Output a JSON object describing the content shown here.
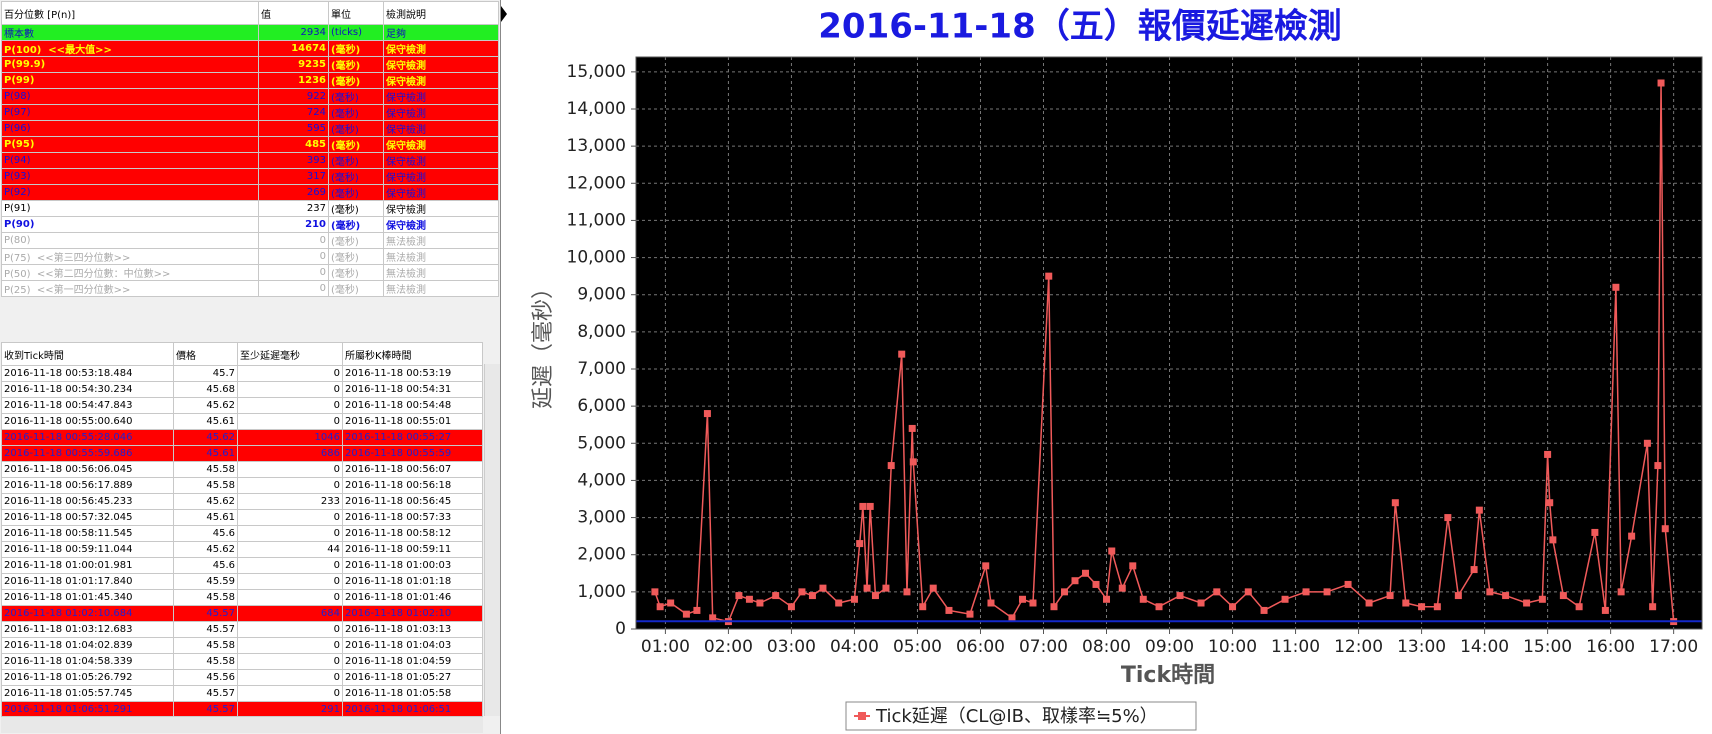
{
  "top_table": {
    "columns": [
      "百分位數 [P(n)]",
      "值",
      "單位",
      "檢測說明"
    ],
    "rows": [
      [
        "標本數",
        2934,
        "(ticks)",
        "足夠"
      ],
      [
        "P(100)  <<最大值>>",
        14674,
        "(毫秒)",
        "保守檢測"
      ],
      [
        "P(99.9)",
        9235,
        "(毫秒)",
        "保守檢測"
      ],
      [
        "P(99)",
        1236,
        "(毫秒)",
        "保守檢測"
      ],
      [
        "P(98)",
        922,
        "(毫秒)",
        "保守檢測"
      ],
      [
        "P(97)",
        724,
        "(毫秒)",
        "保守檢測"
      ],
      [
        "P(96)",
        595,
        "(毫秒)",
        "保守檢測"
      ],
      [
        "P(95)",
        485,
        "(毫秒)",
        "保守檢測"
      ],
      [
        "P(94)",
        393,
        "(毫秒)",
        "保守檢測"
      ],
      [
        "P(93)",
        317,
        "(毫秒)",
        "保守檢測"
      ],
      [
        "P(92)",
        269,
        "(毫秒)",
        "保守檢測"
      ],
      [
        "P(91)",
        237,
        "(毫秒)",
        "保守檢測"
      ],
      [
        "P(90)",
        210,
        "(毫秒)",
        "保守檢測"
      ],
      [
        "P(80)",
        0,
        "(毫秒)",
        "無法檢測"
      ],
      [
        "P(75)  <<第三四分位數>>",
        0,
        "(毫秒)",
        "無法檢測"
      ],
      [
        "P(50)  <<第二四分位數：中位數>>",
        0,
        "(毫秒)",
        "無法檢測"
      ],
      [
        "P(25)  <<第一四分位數>>",
        0,
        "(毫秒)",
        "無法檢測"
      ]
    ],
    "row_styles": [
      "ok",
      "hi",
      "hi",
      "hi",
      "warn",
      "warn",
      "warn",
      "hi",
      "warn",
      "warn",
      "warn",
      "plain",
      "mark",
      "na",
      "na",
      "na",
      "na"
    ]
  },
  "bottom_table": {
    "columns": [
      "收到Tick時間",
      "價格",
      "至少延遲毫秒",
      "所屬秒K棒時間"
    ],
    "rows": [
      [
        "2016-11-18 00:53:18.484",
        45.7,
        0,
        "2016-11-18 00:53:19"
      ],
      [
        "2016-11-18 00:54:30.234",
        45.68,
        0,
        "2016-11-18 00:54:31"
      ],
      [
        "2016-11-18 00:54:47.843",
        45.62,
        0,
        "2016-11-18 00:54:48"
      ],
      [
        "2016-11-18 00:55:00.640",
        45.61,
        0,
        "2016-11-18 00:55:01"
      ],
      [
        "2016-11-18 00:55:28.046",
        45.62,
        1046,
        "2016-11-18 00:55:27"
      ],
      [
        "2016-11-18 00:55:59.686",
        45.61,
        686,
        "2016-11-18 00:55:59"
      ],
      [
        "2016-11-18 00:56:06.045",
        45.58,
        0,
        "2016-11-18 00:56:07"
      ],
      [
        "2016-11-18 00:56:17.889",
        45.58,
        0,
        "2016-11-18 00:56:18"
      ],
      [
        "2016-11-18 00:56:45.233",
        45.62,
        233,
        "2016-11-18 00:56:45"
      ],
      [
        "2016-11-18 00:57:32.045",
        45.61,
        0,
        "2016-11-18 00:57:33"
      ],
      [
        "2016-11-18 00:58:11.545",
        45.6,
        0,
        "2016-11-18 00:58:12"
      ],
      [
        "2016-11-18 00:59:11.044",
        45.62,
        44,
        "2016-11-18 00:59:11"
      ],
      [
        "2016-11-18 01:00:01.981",
        45.6,
        0,
        "2016-11-18 01:00:03"
      ],
      [
        "2016-11-18 01:01:17.840",
        45.59,
        0,
        "2016-11-18 01:01:18"
      ],
      [
        "2016-11-18 01:01:45.340",
        45.58,
        0,
        "2016-11-18 01:01:46"
      ],
      [
        "2016-11-18 01:02:10.684",
        45.57,
        684,
        "2016-11-18 01:02:10"
      ],
      [
        "2016-11-18 01:03:12.683",
        45.57,
        0,
        "2016-11-18 01:03:13"
      ],
      [
        "2016-11-18 01:04:02.839",
        45.58,
        0,
        "2016-11-18 01:04:03"
      ],
      [
        "2016-11-18 01:04:58.339",
        45.58,
        0,
        "2016-11-18 01:04:59"
      ],
      [
        "2016-11-18 01:05:26.792",
        45.56,
        0,
        "2016-11-18 01:05:27"
      ],
      [
        "2016-11-18 01:05:57.745",
        45.57,
        0,
        "2016-11-18 01:05:58"
      ],
      [
        "2016-11-18 01:06:51.291",
        45.57,
        291,
        "2016-11-18 01:06:51"
      ]
    ],
    "highlight_rows": [
      4,
      5,
      15,
      21
    ]
  },
  "chart_data": {
    "type": "line",
    "title": "2016-11-18（五）報價延遲檢測",
    "x_label": "Tick時間",
    "y_label": "延遲（毫秒）",
    "x": [
      "00:50",
      "00:55",
      "01:05",
      "01:20",
      "01:30",
      "01:40",
      "01:45",
      "02:00",
      "02:10",
      "02:20",
      "02:30",
      "02:45",
      "03:00",
      "03:10",
      "03:20",
      "03:30",
      "03:45",
      "04:00",
      "04:05",
      "04:08",
      "04:12",
      "04:15",
      "04:20",
      "04:30",
      "04:35",
      "04:45",
      "04:50",
      "04:55",
      "04:56",
      "05:05",
      "05:15",
      "05:30",
      "05:50",
      "06:05",
      "06:10",
      "06:30",
      "06:40",
      "06:50",
      "07:05",
      "07:10",
      "07:20",
      "07:30",
      "07:40",
      "07:50",
      "08:00",
      "08:05",
      "08:15",
      "08:25",
      "08:35",
      "08:50",
      "09:10",
      "09:30",
      "09:45",
      "10:00",
      "10:15",
      "10:30",
      "10:50",
      "11:10",
      "11:30",
      "11:50",
      "12:10",
      "12:30",
      "12:35",
      "12:45",
      "13:00",
      "13:15",
      "13:25",
      "13:35",
      "13:50",
      "13:55",
      "14:05",
      "14:20",
      "14:40",
      "14:55",
      "15:00",
      "15:02",
      "15:05",
      "15:15",
      "15:30",
      "15:45",
      "15:55",
      "16:05",
      "16:10",
      "16:20",
      "16:35",
      "16:40",
      "16:45",
      "16:48",
      "16:52",
      "17:00"
    ],
    "series": [
      {
        "name": "Tick延遲（CL@IB、取樣率≒5%）",
        "color": "#f05a5a",
        "values": [
          1000,
          600,
          700,
          400,
          500,
          5800,
          300,
          200,
          900,
          800,
          700,
          900,
          600,
          1000,
          900,
          1100,
          700,
          800,
          2300,
          3300,
          1100,
          3300,
          900,
          1100,
          4400,
          7400,
          1000,
          5400,
          4500,
          600,
          1100,
          500,
          400,
          1700,
          700,
          300,
          800,
          700,
          9500,
          600,
          1000,
          1300,
          1500,
          1200,
          800,
          2100,
          1100,
          1700,
          800,
          600,
          900,
          700,
          1000,
          600,
          1000,
          500,
          800,
          1000,
          1000,
          1200,
          700,
          900,
          3400,
          700,
          600,
          600,
          3000,
          900,
          1600,
          3200,
          1000,
          900,
          700,
          800,
          4700,
          3400,
          2400,
          900,
          600,
          2600,
          500,
          9200,
          1000,
          2500,
          5000,
          600,
          4400,
          14700,
          2700,
          200
        ]
      }
    ],
    "reference_line": {
      "value": 210,
      "color": "#1428c8"
    },
    "xlim": [
      "00:32",
      "17:27"
    ],
    "xticks": [
      "01:00",
      "02:00",
      "03:00",
      "04:00",
      "05:00",
      "06:00",
      "07:00",
      "08:00",
      "09:00",
      "10:00",
      "11:00",
      "12:00",
      "13:00",
      "14:00",
      "15:00",
      "16:00",
      "17:00"
    ],
    "ylim": [
      0,
      15400
    ],
    "yticks": [
      0,
      {
        "value": 1000,
        "label": "1,000"
      },
      {
        "value": 2000,
        "label": "2,000"
      },
      {
        "value": 3000,
        "label": "3,000"
      },
      {
        "value": 4000,
        "label": "4,000"
      },
      {
        "value": 5000,
        "label": "5,000"
      },
      {
        "value": 6000,
        "label": "6,000"
      },
      {
        "value": 7000,
        "label": "7,000"
      },
      {
        "value": 8000,
        "label": "8,000"
      },
      {
        "value": 9000,
        "label": "9,000"
      },
      {
        "value": 10000,
        "label": "10,000"
      },
      {
        "value": 11000,
        "label": "11,000"
      },
      {
        "value": 12000,
        "label": "12,000"
      },
      {
        "value": 13000,
        "label": "13,000"
      },
      {
        "value": 14000,
        "label": "14,000"
      },
      {
        "value": 15000,
        "label": "15,000"
      }
    ],
    "grid": true,
    "background": "#000000"
  }
}
